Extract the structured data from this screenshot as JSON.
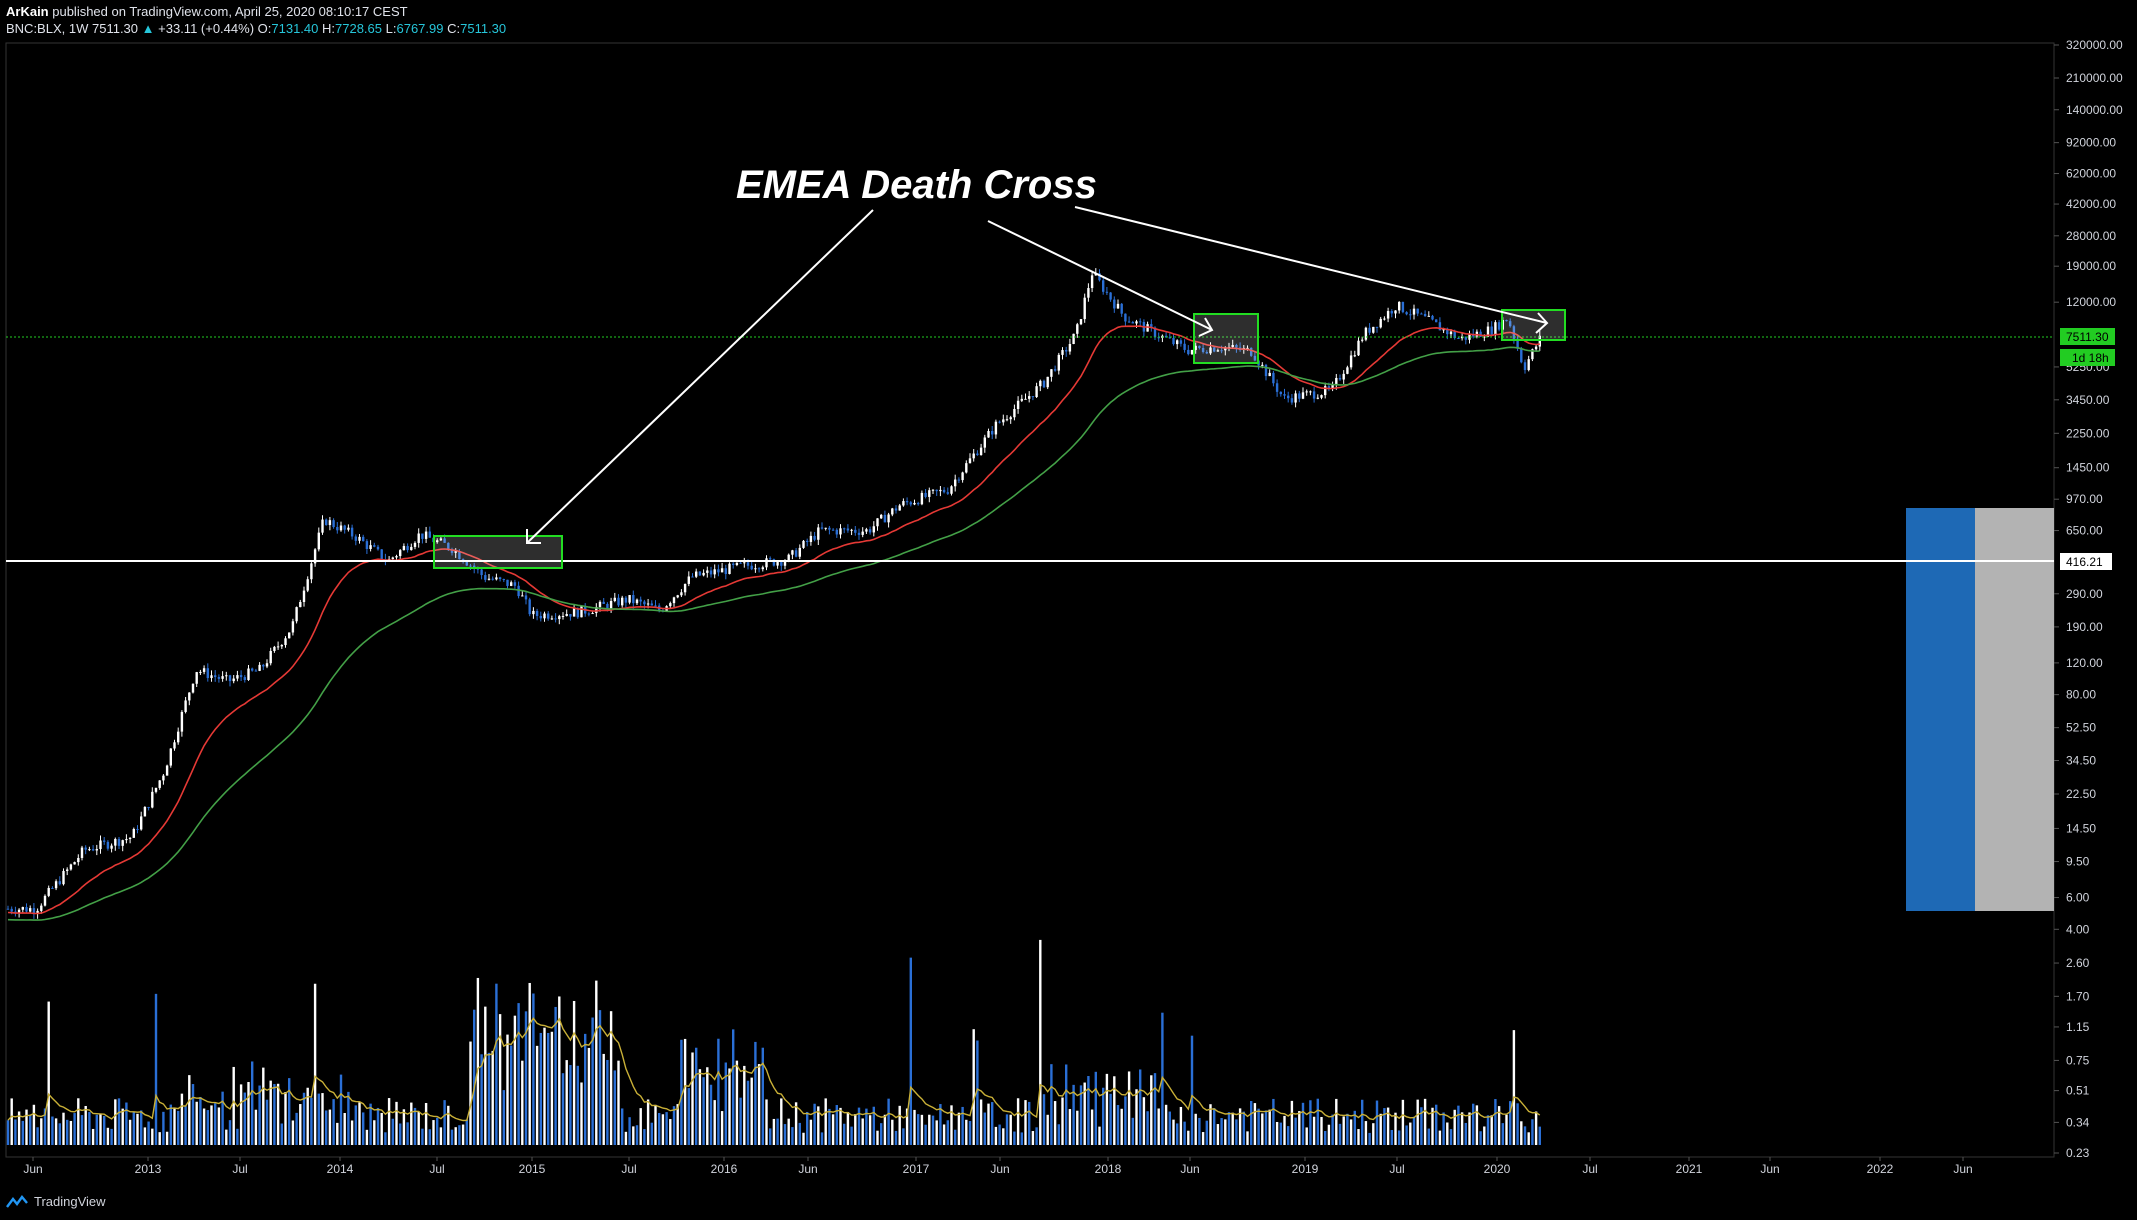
{
  "header": {
    "author": "ArKain",
    "published_text": " published on TradingView.com, April 25, 2020 08:10:17 CEST",
    "symbol": "BNC:BLX, 1W",
    "last": "7511.30",
    "change_arrow": "▲",
    "change": "+33.11 (+0.44%)",
    "o_label": "O:",
    "o_value": "7131.40",
    "h_label": "H:",
    "h_value": "7728.65",
    "l_label": "L:",
    "l_value": "6767.99",
    "c_label": "C:",
    "c_value": "7511.30"
  },
  "footer": {
    "brand": "TradingView"
  },
  "annotation": {
    "text": "EMEA Death Cross"
  },
  "colors": {
    "background": "#000000",
    "candle_up": "#ffffff",
    "candle_down": "#2a6fd6",
    "ema_fast": "#e53935",
    "ema_slow": "#43a047",
    "volume_ma": "#c9b037",
    "box_border": "#22dd22",
    "price_line": "#22cc22",
    "level_line": "#ffffff",
    "vp_blue": "#1e69b5",
    "vp_gray": "#b3b3b3"
  },
  "chart_data": {
    "type": "candlestick",
    "scale": "log",
    "y_ticks": [
      "320000.00",
      "210000.00",
      "140000.00",
      "92000.00",
      "62000.00",
      "42000.00",
      "28000.00",
      "19000.00",
      "12000.00",
      "5250.00",
      "3450.00",
      "2250.00",
      "1450.00",
      "970.00",
      "650.00",
      "290.00",
      "190.00",
      "120.00",
      "80.00",
      "52.50",
      "34.50",
      "22.50",
      "14.50",
      "9.50",
      "6.00",
      "4.00",
      "2.60",
      "1.70",
      "1.15",
      "0.75",
      "0.51",
      "0.34",
      "0.23"
    ],
    "x_ticks": [
      "Jun",
      "2013",
      "Jul",
      "2014",
      "Jul",
      "2015",
      "Jul",
      "2016",
      "Jun",
      "2017",
      "Jun",
      "2018",
      "Jun",
      "2019",
      "Jul",
      "2020",
      "Jul",
      "2021",
      "Jun",
      "2022",
      "Jun"
    ],
    "last_price": "7511.30",
    "countdown": "1d 18h",
    "level": "416.21",
    "price_path": [
      [
        "2012-06",
        5.2
      ],
      [
        "2012-09",
        11
      ],
      [
        "2012-12",
        13
      ],
      [
        "2013-02",
        30
      ],
      [
        "2013-04",
        110
      ],
      [
        "2013-06",
        95
      ],
      [
        "2013-08",
        110
      ],
      [
        "2013-10",
        190
      ],
      [
        "2013-12",
        750
      ],
      [
        "2014-02",
        600
      ],
      [
        "2014-04",
        440
      ],
      [
        "2014-06",
        620
      ],
      [
        "2014-08",
        520
      ],
      [
        "2014-10",
        360
      ],
      [
        "2014-12",
        320
      ],
      [
        "2015-01",
        220
      ],
      [
        "2015-04",
        230
      ],
      [
        "2015-07",
        270
      ],
      [
        "2015-09",
        235
      ],
      [
        "2015-11",
        360
      ],
      [
        "2016-02",
        410
      ],
      [
        "2016-05",
        450
      ],
      [
        "2016-07",
        650
      ],
      [
        "2016-10",
        650
      ],
      [
        "2016-12",
        900
      ],
      [
        "2017-03",
        1100
      ],
      [
        "2017-06",
        2500
      ],
      [
        "2017-09",
        4300
      ],
      [
        "2017-11",
        8000
      ],
      [
        "2017-12",
        17500
      ],
      [
        "2018-02",
        10000
      ],
      [
        "2018-04",
        8000
      ],
      [
        "2018-06",
        6500
      ],
      [
        "2018-08",
        6800
      ],
      [
        "2018-10",
        6400
      ],
      [
        "2018-12",
        3500
      ],
      [
        "2019-03",
        3900
      ],
      [
        "2019-05",
        8000
      ],
      [
        "2019-07",
        11500
      ],
      [
        "2019-09",
        9500
      ],
      [
        "2019-11",
        7500
      ],
      [
        "2020-01",
        8500
      ],
      [
        "2020-02",
        9800
      ],
      [
        "2020-03",
        5200
      ],
      [
        "2020-04",
        7511
      ]
    ],
    "series": [
      {
        "name": "candles"
      },
      {
        "name": "ema_fast"
      },
      {
        "name": "ema_slow"
      },
      {
        "name": "volume"
      },
      {
        "name": "volume_ma"
      }
    ],
    "highlight_boxes": [
      {
        "from": "2014-08",
        "to": "2015-01"
      },
      {
        "from": "2018-05",
        "to": "2018-07"
      },
      {
        "from": "2019-12",
        "to": "2020-03"
      }
    ]
  }
}
